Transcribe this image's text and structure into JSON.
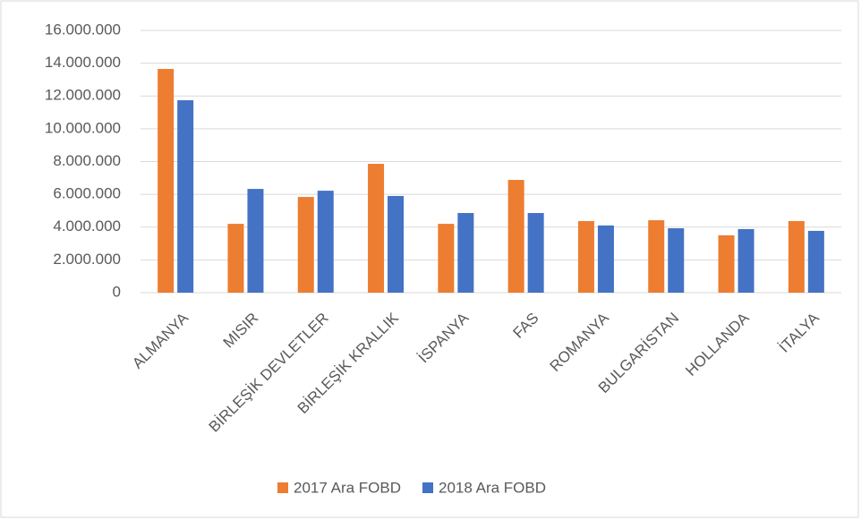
{
  "chart_data": {
    "type": "bar",
    "categories": [
      "ALMANYA",
      "MISIR",
      "BİRLEŞİK DEVLETLER",
      "BİRLEŞİK KRALLIK",
      "İSPANYA",
      "FAS",
      "ROMANYA",
      "BULGARİSTAN",
      "HOLLANDA",
      "İTALYA"
    ],
    "series": [
      {
        "name": "2017 Ara FOBD",
        "color": "#ed7d31",
        "values": [
          13650000,
          4200000,
          5840000,
          7860000,
          4200000,
          6880000,
          4370000,
          4420000,
          3500000,
          4370000
        ]
      },
      {
        "name": "2018 Ara FOBD",
        "color": "#4472c4",
        "values": [
          11740000,
          6330000,
          6220000,
          5900000,
          4860000,
          4860000,
          4100000,
          3930000,
          3880000,
          3770000
        ]
      }
    ],
    "ylim": [
      0,
      16000000
    ],
    "yticks": [
      0,
      {
        "value": 2000000,
        "label": "2.000.000"
      },
      {
        "value": 4000000,
        "label": "4.000.000"
      },
      {
        "value": 6000000,
        "label": "6.000.000"
      },
      {
        "value": 8000000,
        "label": "8.000.000"
      },
      {
        "value": 10000000,
        "label": "10.000.000"
      },
      {
        "value": 12000000,
        "label": "12.000.000"
      },
      {
        "value": 14000000,
        "label": "14.000.000"
      },
      {
        "value": 16000000,
        "label": "16.000.000"
      }
    ],
    "grid": true,
    "legend": "bottom"
  }
}
